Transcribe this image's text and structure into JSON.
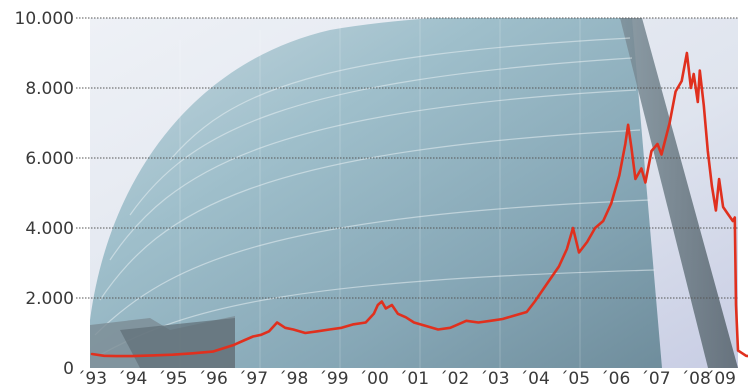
{
  "chart_data": {
    "type": "line",
    "title": "",
    "xlabel": "",
    "ylabel": "",
    "background": "photo of curved glass office building",
    "grid": true,
    "ylim": [
      0,
      10000
    ],
    "y_ticks": [
      {
        "value": 0,
        "label": "0"
      },
      {
        "value": 2000,
        "label": "2.000"
      },
      {
        "value": 4000,
        "label": "4.000"
      },
      {
        "value": 6000,
        "label": "6.000"
      },
      {
        "value": 8000,
        "label": "8.000"
      },
      {
        "value": 10000,
        "label": "10.000"
      }
    ],
    "xlim": [
      1993,
      2009
    ],
    "x_ticks": [
      {
        "value": 1993,
        "label": "´93"
      },
      {
        "value": 1994,
        "label": "´94"
      },
      {
        "value": 1995,
        "label": "´95"
      },
      {
        "value": 1996,
        "label": "´96"
      },
      {
        "value": 1997,
        "label": "´97"
      },
      {
        "value": 1998,
        "label": "´98"
      },
      {
        "value": 1999,
        "label": "´99"
      },
      {
        "value": 2000,
        "label": "´00"
      },
      {
        "value": 2001,
        "label": "´01"
      },
      {
        "value": 2002,
        "label": "´02"
      },
      {
        "value": 2003,
        "label": "´03"
      },
      {
        "value": 2004,
        "label": "´04"
      },
      {
        "value": 2005,
        "label": "´05"
      },
      {
        "value": 2006,
        "label": "´06"
      },
      {
        "value": 2007,
        "label": "´07"
      },
      {
        "value": 2008,
        "label": "´08"
      },
      {
        "value": 2009,
        "label": "´09"
      }
    ],
    "colors": {
      "line": "#e0301e",
      "grid": "#555555",
      "text": "#3a3a3a"
    },
    "series": [
      {
        "name": "",
        "points": [
          [
            1993.0,
            400
          ],
          [
            1993.3,
            350
          ],
          [
            1993.6,
            340
          ],
          [
            1994.0,
            340
          ],
          [
            1994.5,
            360
          ],
          [
            1995.0,
            380
          ],
          [
            1995.5,
            420
          ],
          [
            1996.0,
            470
          ],
          [
            1996.5,
            650
          ],
          [
            1996.8,
            800
          ],
          [
            1997.0,
            900
          ],
          [
            1997.2,
            950
          ],
          [
            1997.4,
            1050
          ],
          [
            1997.6,
            1300
          ],
          [
            1997.8,
            1150
          ],
          [
            1998.0,
            1100
          ],
          [
            1998.3,
            1000
          ],
          [
            1998.6,
            1050
          ],
          [
            1998.9,
            1100
          ],
          [
            1999.2,
            1150
          ],
          [
            1999.5,
            1250
          ],
          [
            1999.8,
            1300
          ],
          [
            2000.0,
            1550
          ],
          [
            2000.1,
            1800
          ],
          [
            2000.2,
            1900
          ],
          [
            2000.3,
            1700
          ],
          [
            2000.45,
            1800
          ],
          [
            2000.6,
            1550
          ],
          [
            2000.8,
            1450
          ],
          [
            2001.0,
            1300
          ],
          [
            2001.3,
            1200
          ],
          [
            2001.6,
            1100
          ],
          [
            2001.9,
            1150
          ],
          [
            2002.1,
            1250
          ],
          [
            2002.3,
            1350
          ],
          [
            2002.6,
            1300
          ],
          [
            2002.9,
            1350
          ],
          [
            2003.2,
            1400
          ],
          [
            2003.5,
            1500
          ],
          [
            2003.8,
            1600
          ],
          [
            2004.0,
            1900
          ],
          [
            2004.3,
            2400
          ],
          [
            2004.6,
            2900
          ],
          [
            2004.8,
            3400
          ],
          [
            2004.95,
            4000
          ],
          [
            2005.1,
            3300
          ],
          [
            2005.3,
            3600
          ],
          [
            2005.5,
            4000
          ],
          [
            2005.7,
            4200
          ],
          [
            2005.9,
            4700
          ],
          [
            2006.1,
            5500
          ],
          [
            2006.25,
            6400
          ],
          [
            2006.32,
            6950
          ],
          [
            2006.4,
            6300
          ],
          [
            2006.5,
            5400
          ],
          [
            2006.65,
            5700
          ],
          [
            2006.75,
            5300
          ],
          [
            2006.9,
            6200
          ],
          [
            2007.05,
            6400
          ],
          [
            2007.15,
            6100
          ],
          [
            2007.35,
            7000
          ],
          [
            2007.5,
            7900
          ],
          [
            2007.65,
            8200
          ],
          [
            2007.78,
            9000
          ],
          [
            2007.88,
            8000
          ],
          [
            2007.95,
            8400
          ],
          [
            2008.05,
            7600
          ],
          [
            2008.1,
            8500
          ],
          [
            2008.2,
            7500
          ],
          [
            2008.3,
            6200
          ],
          [
            2008.4,
            5200
          ],
          [
            2008.5,
            4500
          ],
          [
            2008.58,
            5400
          ],
          [
            2008.68,
            4600
          ],
          [
            2008.8,
            4400
          ],
          [
            2008.92,
            4200
          ],
          [
            2008.97,
            4300
          ],
          [
            2009.0,
            1800
          ],
          [
            2009.05,
            500
          ],
          [
            2009.12,
            450
          ],
          [
            2009.25,
            350
          ],
          [
            2009.35,
            330
          ]
        ]
      }
    ]
  }
}
